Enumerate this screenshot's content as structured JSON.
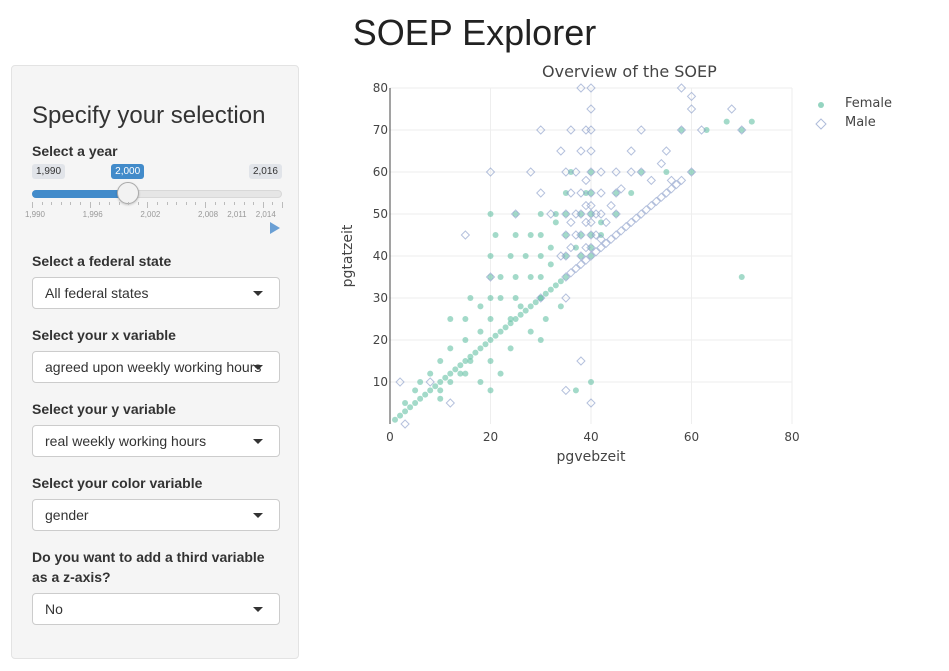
{
  "app": {
    "title": "SOEP Explorer"
  },
  "sidebar": {
    "heading": "Specify your selection",
    "year": {
      "label": "Select a year",
      "min": 1990,
      "max": 2016,
      "value": 2000,
      "min_label": "1,990",
      "max_label": "2,016",
      "value_label": "2,000",
      "tick_labels": [
        "1,990",
        "1,996",
        "2,002",
        "2,008",
        "2,011",
        "2,014"
      ],
      "tick_values": [
        1990,
        1996,
        2002,
        2008,
        2011,
        2014
      ]
    },
    "state": {
      "label": "Select a federal state",
      "value": "All federal states"
    },
    "x_var": {
      "label": "Select your x variable",
      "value": "agreed upon weekly working hours"
    },
    "y_var": {
      "label": "Select your y variable",
      "value": "real weekly working hours"
    },
    "color_var": {
      "label": "Select your color variable",
      "value": "gender"
    },
    "z_var": {
      "label": "Do you want to add a third variable as a z-axis?",
      "value": "No"
    }
  },
  "chart_data": {
    "type": "scatter",
    "title": "Overview of the SOEP",
    "xlabel": "pgvebzeit",
    "ylabel": "pgtatzeit",
    "xlim": [
      0,
      80
    ],
    "ylim": [
      0,
      80
    ],
    "xticks": [
      0,
      20,
      40,
      60,
      80
    ],
    "yticks": [
      10,
      20,
      30,
      40,
      50,
      60,
      70,
      80
    ],
    "grid": true,
    "legend_position": "top-right",
    "series": [
      {
        "name": "Female",
        "marker": "circle",
        "color": "#66c2a5",
        "points": [
          [
            1,
            1
          ],
          [
            2,
            2
          ],
          [
            3,
            3
          ],
          [
            4,
            4
          ],
          [
            5,
            5
          ],
          [
            6,
            6
          ],
          [
            7,
            7
          ],
          [
            8,
            8
          ],
          [
            9,
            9
          ],
          [
            10,
            10
          ],
          [
            11,
            11
          ],
          [
            12,
            12
          ],
          [
            13,
            13
          ],
          [
            14,
            14
          ],
          [
            15,
            15
          ],
          [
            16,
            16
          ],
          [
            17,
            17
          ],
          [
            18,
            18
          ],
          [
            19,
            19
          ],
          [
            20,
            20
          ],
          [
            21,
            21
          ],
          [
            22,
            22
          ],
          [
            23,
            23
          ],
          [
            24,
            24
          ],
          [
            25,
            25
          ],
          [
            26,
            26
          ],
          [
            27,
            27
          ],
          [
            28,
            28
          ],
          [
            29,
            29
          ],
          [
            30,
            30
          ],
          [
            31,
            31
          ],
          [
            32,
            32
          ],
          [
            33,
            33
          ],
          [
            34,
            34
          ],
          [
            35,
            35
          ],
          [
            3,
            5
          ],
          [
            5,
            8
          ],
          [
            6,
            10
          ],
          [
            8,
            12
          ],
          [
            10,
            8
          ],
          [
            10,
            15
          ],
          [
            12,
            10
          ],
          [
            12,
            18
          ],
          [
            14,
            12
          ],
          [
            15,
            20
          ],
          [
            15,
            25
          ],
          [
            16,
            15
          ],
          [
            18,
            22
          ],
          [
            18,
            28
          ],
          [
            20,
            15
          ],
          [
            20,
            25
          ],
          [
            20,
            30
          ],
          [
            20,
            35
          ],
          [
            20,
            40
          ],
          [
            20,
            50
          ],
          [
            21,
            45
          ],
          [
            22,
            30
          ],
          [
            22,
            35
          ],
          [
            24,
            25
          ],
          [
            24,
            40
          ],
          [
            25,
            30
          ],
          [
            25,
            35
          ],
          [
            25,
            45
          ],
          [
            25,
            50
          ],
          [
            26,
            28
          ],
          [
            27,
            40
          ],
          [
            28,
            35
          ],
          [
            28,
            45
          ],
          [
            30,
            30
          ],
          [
            30,
            35
          ],
          [
            30,
            40
          ],
          [
            30,
            45
          ],
          [
            30,
            50
          ],
          [
            31,
            25
          ],
          [
            32,
            38
          ],
          [
            32,
            42
          ],
          [
            33,
            48
          ],
          [
            33,
            50
          ],
          [
            35,
            40
          ],
          [
            35,
            45
          ],
          [
            35,
            50
          ],
          [
            35,
            55
          ],
          [
            36,
            60
          ],
          [
            37,
            42
          ],
          [
            38,
            40
          ],
          [
            38,
            45
          ],
          [
            38,
            50
          ],
          [
            39,
            55
          ],
          [
            40,
            40
          ],
          [
            40,
            42
          ],
          [
            40,
            45
          ],
          [
            40,
            50
          ],
          [
            40,
            55
          ],
          [
            40,
            60
          ],
          [
            42,
            45
          ],
          [
            42,
            48
          ],
          [
            45,
            50
          ],
          [
            45,
            55
          ],
          [
            48,
            55
          ],
          [
            50,
            60
          ],
          [
            55,
            60
          ],
          [
            58,
            70
          ],
          [
            60,
            60
          ],
          [
            63,
            70
          ],
          [
            67,
            72
          ],
          [
            70,
            70
          ],
          [
            70,
            35
          ],
          [
            72,
            72
          ],
          [
            37,
            8
          ],
          [
            40,
            10
          ],
          [
            20,
            8
          ],
          [
            24,
            18
          ],
          [
            28,
            22
          ],
          [
            18,
            10
          ],
          [
            15,
            12
          ],
          [
            10,
            6
          ],
          [
            22,
            12
          ],
          [
            30,
            20
          ],
          [
            34,
            28
          ],
          [
            16,
            30
          ],
          [
            12,
            25
          ]
        ]
      },
      {
        "name": "Male",
        "marker": "diamond-open",
        "color": "#8da0cb",
        "points": [
          [
            35,
            35
          ],
          [
            36,
            36
          ],
          [
            37,
            37
          ],
          [
            38,
            38
          ],
          [
            39,
            39
          ],
          [
            40,
            40
          ],
          [
            41,
            41
          ],
          [
            42,
            42
          ],
          [
            43,
            43
          ],
          [
            44,
            44
          ],
          [
            45,
            45
          ],
          [
            46,
            46
          ],
          [
            47,
            47
          ],
          [
            48,
            48
          ],
          [
            49,
            49
          ],
          [
            50,
            50
          ],
          [
            51,
            51
          ],
          [
            52,
            52
          ],
          [
            53,
            53
          ],
          [
            54,
            54
          ],
          [
            55,
            55
          ],
          [
            56,
            56
          ],
          [
            57,
            57
          ],
          [
            58,
            58
          ],
          [
            35,
            40
          ],
          [
            35,
            45
          ],
          [
            35,
            50
          ],
          [
            36,
            42
          ],
          [
            36,
            48
          ],
          [
            36,
            55
          ],
          [
            37,
            45
          ],
          [
            37,
            50
          ],
          [
            37,
            60
          ],
          [
            38,
            40
          ],
          [
            38,
            45
          ],
          [
            38,
            50
          ],
          [
            38,
            55
          ],
          [
            38,
            65
          ],
          [
            39,
            42
          ],
          [
            39,
            48
          ],
          [
            39,
            52
          ],
          [
            39,
            58
          ],
          [
            39,
            70
          ],
          [
            40,
            42
          ],
          [
            40,
            45
          ],
          [
            40,
            48
          ],
          [
            40,
            50
          ],
          [
            40,
            52
          ],
          [
            40,
            55
          ],
          [
            40,
            60
          ],
          [
            40,
            65
          ],
          [
            40,
            70
          ],
          [
            40,
            75
          ],
          [
            40,
            80
          ],
          [
            41,
            45
          ],
          [
            41,
            50
          ],
          [
            42,
            44
          ],
          [
            42,
            50
          ],
          [
            42,
            55
          ],
          [
            42,
            60
          ],
          [
            43,
            48
          ],
          [
            44,
            52
          ],
          [
            45,
            50
          ],
          [
            45,
            55
          ],
          [
            45,
            60
          ],
          [
            46,
            56
          ],
          [
            48,
            60
          ],
          [
            48,
            65
          ],
          [
            50,
            60
          ],
          [
            50,
            70
          ],
          [
            52,
            58
          ],
          [
            54,
            62
          ],
          [
            55,
            65
          ],
          [
            56,
            58
          ],
          [
            58,
            70
          ],
          [
            58,
            80
          ],
          [
            60,
            60
          ],
          [
            60,
            75
          ],
          [
            60,
            78
          ],
          [
            62,
            70
          ],
          [
            68,
            75
          ],
          [
            70,
            70
          ],
          [
            34,
            40
          ],
          [
            32,
            50
          ],
          [
            30,
            55
          ],
          [
            28,
            60
          ],
          [
            25,
            50
          ],
          [
            20,
            60
          ],
          [
            15,
            45
          ],
          [
            20,
            35
          ],
          [
            30,
            30
          ],
          [
            35,
            30
          ],
          [
            35,
            60
          ],
          [
            36,
            70
          ],
          [
            34,
            65
          ],
          [
            38,
            80
          ],
          [
            8,
            10
          ],
          [
            2,
            10
          ],
          [
            3,
            0
          ],
          [
            12,
            5
          ],
          [
            30,
            70
          ],
          [
            38,
            15
          ],
          [
            35,
            8
          ],
          [
            40,
            5
          ]
        ]
      }
    ]
  }
}
